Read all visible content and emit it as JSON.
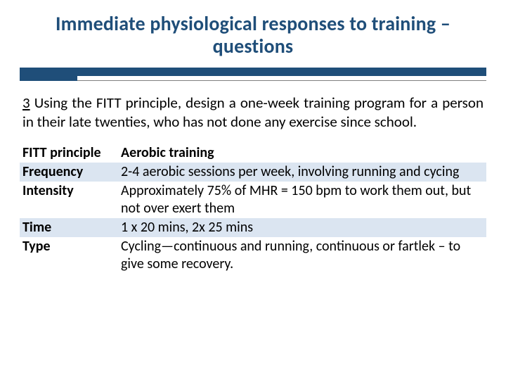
{
  "title": "Immediate physiological responses to training – questions",
  "question_number": "3",
  "question_text": " Using the FITT principle, design a one-week training program for a person in their late twenties, who has not done any exercise since school.",
  "colors": {
    "title_color": "#1f4e79",
    "accent_bar": "#1f4e79",
    "band_bg": "#dbe5f1",
    "plain_bg": "#ffffff",
    "thin_line": "#808080"
  },
  "table": {
    "columns": [
      "FITT principle",
      "Aerobic training"
    ],
    "rows": [
      {
        "label": "Frequency",
        "value": "2-4 aerobic sessions per week, involving running and cycing",
        "band": true
      },
      {
        "label": "Intensity",
        "value": "Approximately 75% of MHR = 150 bpm to work them out, but not over exert them",
        "band": false
      },
      {
        "label": "Time",
        "value": "1 x 20 mins, 2x 25 mins",
        "band": true
      },
      {
        "label": "Type",
        "value": "Cycling—continuous and running, continuous or fartlek – to give some recovery.",
        "band": false
      }
    ]
  }
}
